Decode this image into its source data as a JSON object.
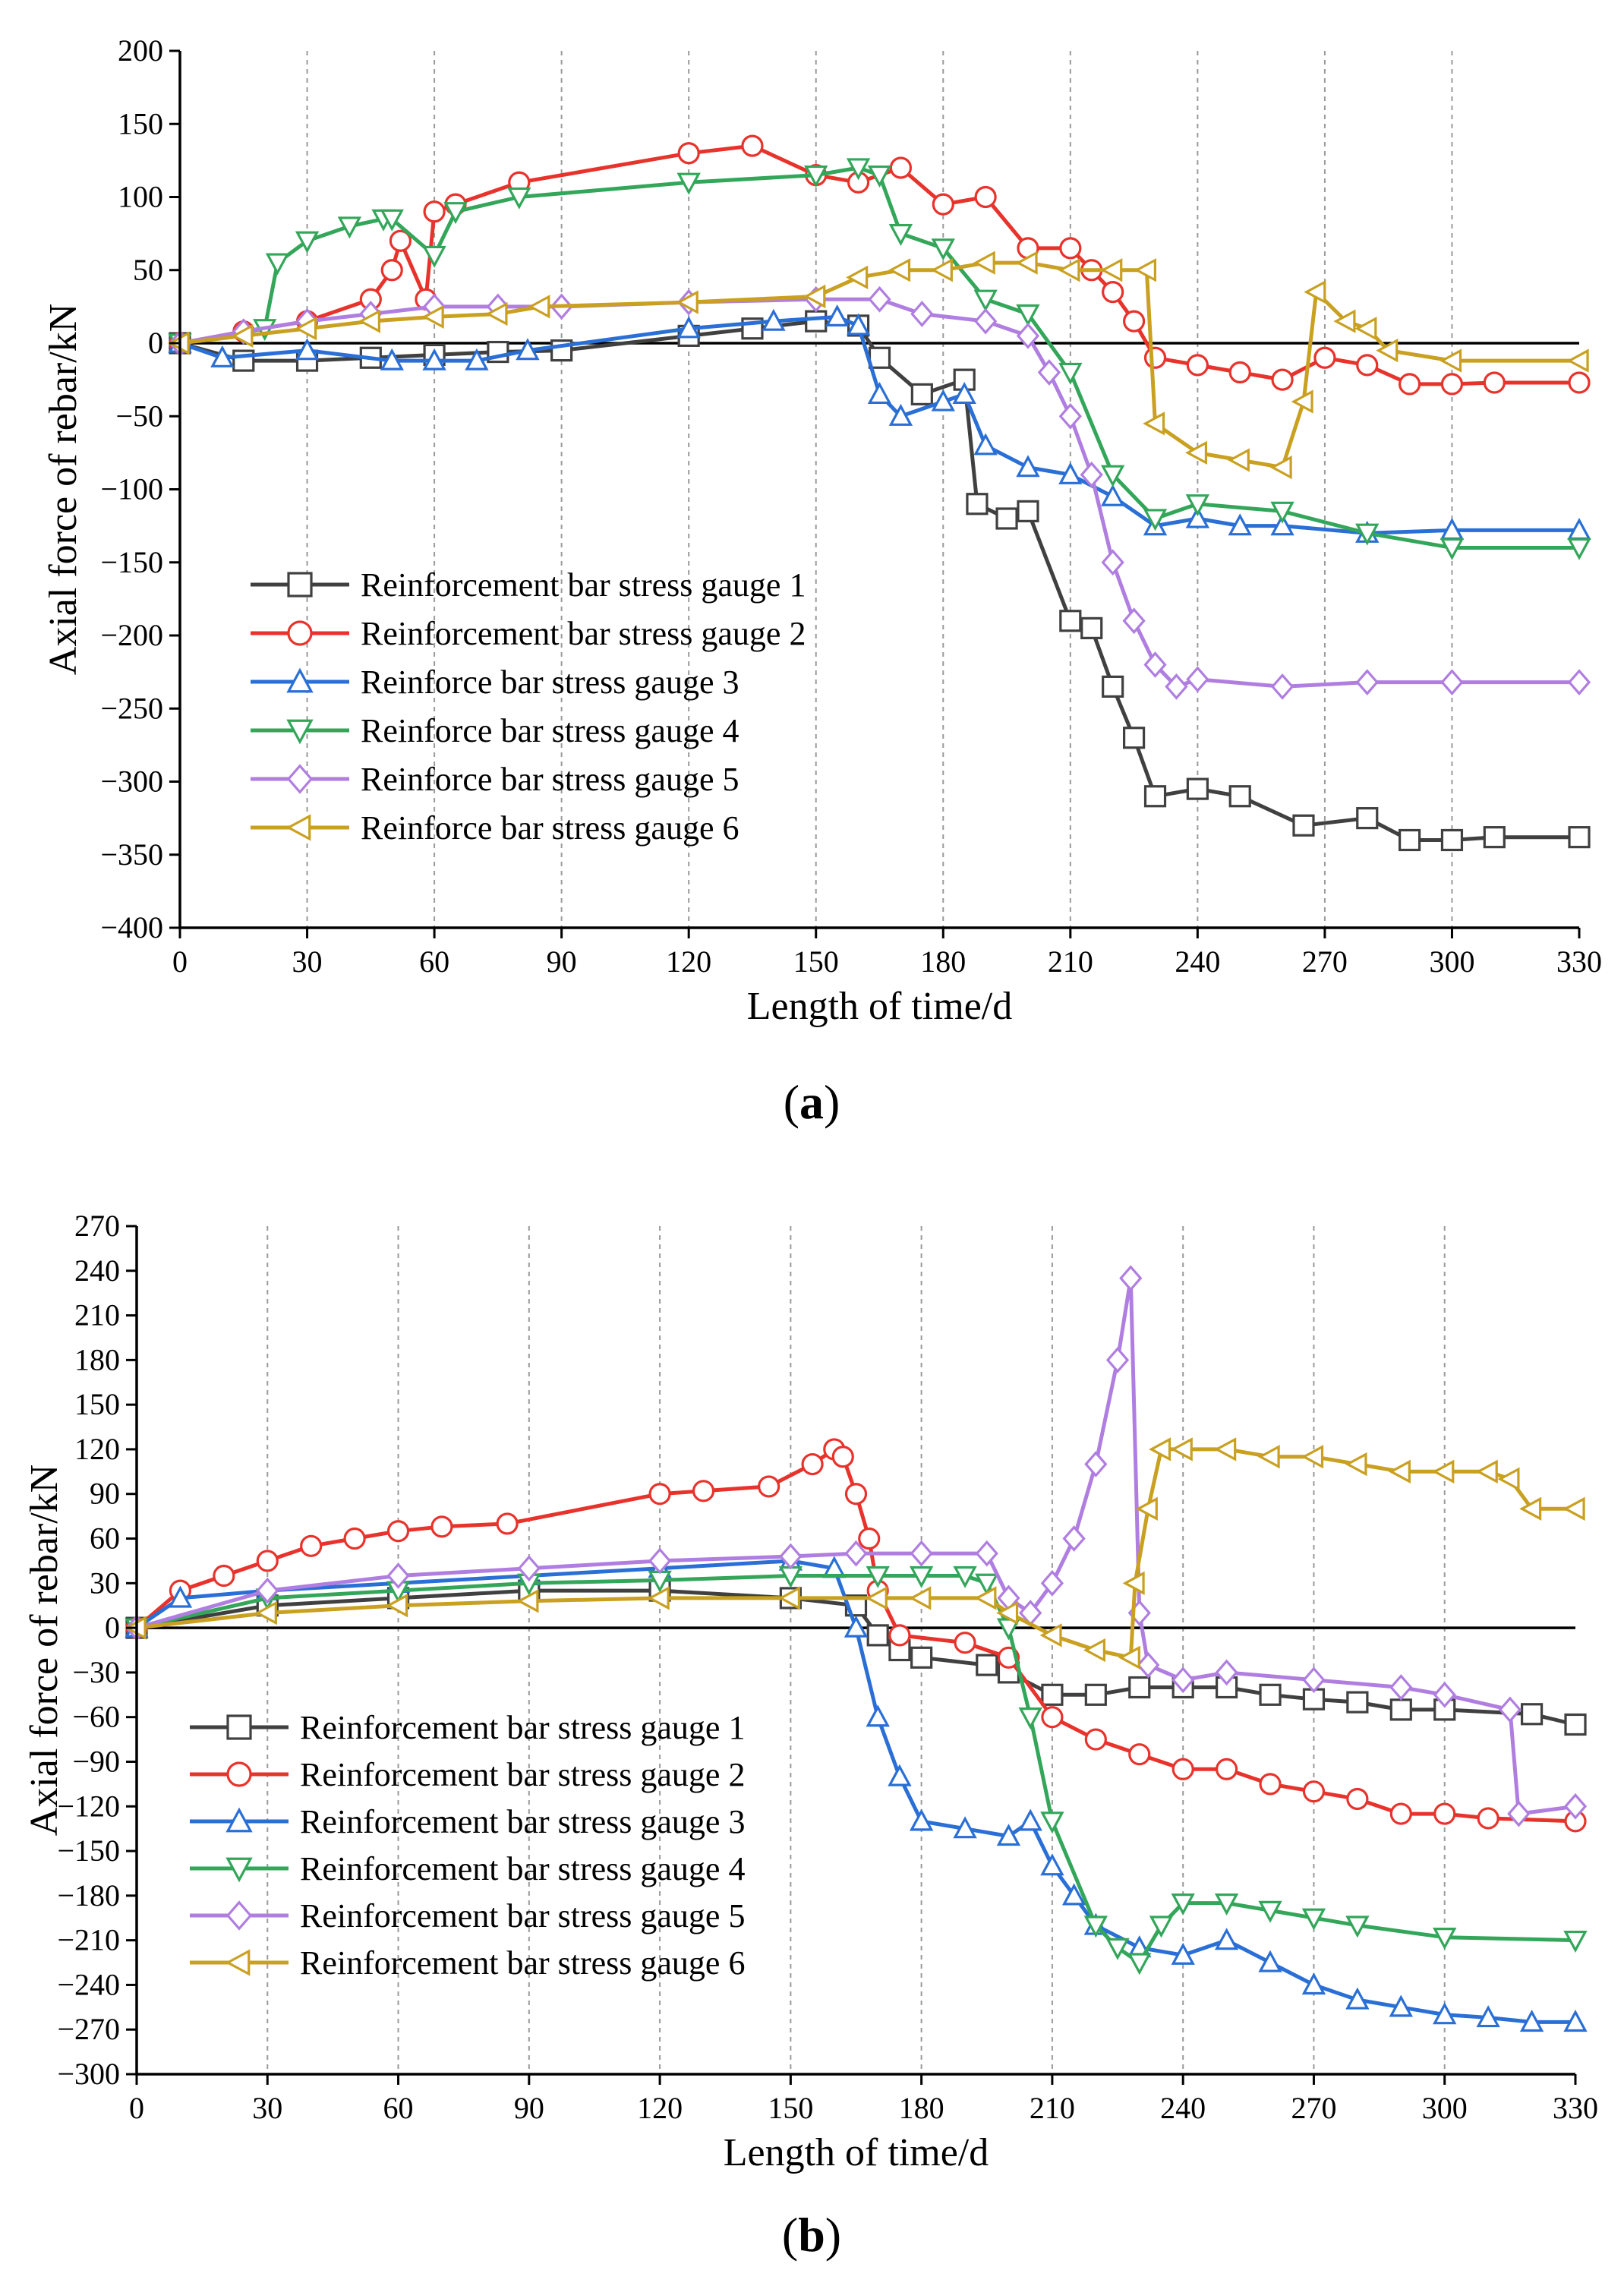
{
  "chart_data": [
    {
      "type": "line",
      "panel_label": "a",
      "xlabel": "Length of time/d",
      "ylabel": "Axial force of rebar/kN",
      "xlim": [
        0,
        330
      ],
      "ylim": [
        -400,
        200
      ],
      "xticks": [
        0,
        30,
        60,
        90,
        120,
        150,
        180,
        210,
        240,
        270,
        300,
        330
      ],
      "yticks": [
        200,
        150,
        100,
        50,
        0,
        -50,
        -100,
        -150,
        -200,
        -250,
        -300,
        -350,
        -400
      ],
      "xgrid": [
        30,
        60,
        90,
        120,
        150,
        180,
        210,
        240,
        270,
        300
      ],
      "zero_line": 0,
      "legend_position": "bottom-left",
      "series": [
        {
          "name": "Reinforcement bar stress gauge 1",
          "color": "#404040",
          "marker": "square",
          "x": [
            0,
            15,
            30,
            45,
            60,
            75,
            90,
            120,
            135,
            150,
            160,
            165,
            175,
            185,
            188,
            195,
            200,
            210,
            215,
            220,
            225,
            230,
            240,
            250,
            265,
            280,
            290,
            300,
            310,
            330
          ],
          "y": [
            0,
            -12,
            -12,
            -10,
            -8,
            -6,
            -5,
            5,
            10,
            15,
            12,
            -10,
            -35,
            -25,
            -110,
            -120,
            -115,
            -190,
            -195,
            -235,
            -270,
            -310,
            -305,
            -310,
            -330,
            -325,
            -340,
            -340,
            -338,
            -338
          ]
        },
        {
          "name": "Reinforcement bar stress gauge 2",
          "color": "#e8332c",
          "marker": "circle",
          "x": [
            0,
            15,
            30,
            45,
            50,
            52,
            58,
            60,
            65,
            80,
            120,
            135,
            150,
            160,
            170,
            180,
            190,
            200,
            210,
            215,
            220,
            225,
            230,
            240,
            250,
            260,
            270,
            280,
            290,
            300,
            310,
            330
          ],
          "y": [
            0,
            8,
            15,
            30,
            50,
            70,
            30,
            90,
            95,
            110,
            130,
            135,
            115,
            110,
            120,
            95,
            100,
            65,
            65,
            50,
            35,
            15,
            -10,
            -15,
            -20,
            -25,
            -10,
            -15,
            -28,
            -28,
            -27,
            -27
          ]
        },
        {
          "name": "Reinforce bar stress gauge 3",
          "color": "#2a6fd6",
          "marker": "triangle-up",
          "x": [
            0,
            10,
            30,
            50,
            60,
            70,
            82,
            120,
            140,
            155,
            160,
            165,
            170,
            180,
            185,
            190,
            200,
            210,
            220,
            230,
            240,
            250,
            260,
            280,
            300,
            330
          ],
          "y": [
            0,
            -10,
            -5,
            -12,
            -12,
            -12,
            -5,
            10,
            15,
            18,
            12,
            -35,
            -50,
            -40,
            -35,
            -70,
            -85,
            -90,
            -105,
            -125,
            -120,
            -125,
            -125,
            -130,
            -128,
            -128
          ]
        },
        {
          "name": "Reinforce bar stress gauge 4",
          "color": "#33a65a",
          "marker": "triangle-down",
          "x": [
            0,
            20,
            23,
            30,
            40,
            48,
            50,
            60,
            65,
            80,
            120,
            150,
            160,
            165,
            170,
            180,
            190,
            200,
            210,
            220,
            230,
            240,
            260,
            280,
            300,
            330
          ],
          "y": [
            0,
            10,
            55,
            70,
            80,
            85,
            85,
            60,
            90,
            100,
            110,
            115,
            120,
            115,
            75,
            65,
            30,
            20,
            -20,
            -90,
            -120,
            -110,
            -115,
            -130,
            -140,
            -140
          ]
        },
        {
          "name": "Reinforce bar stress gauge 5",
          "color": "#b07ee0",
          "marker": "diamond",
          "x": [
            0,
            15,
            30,
            45,
            60,
            75,
            90,
            120,
            150,
            165,
            175,
            190,
            200,
            205,
            210,
            215,
            220,
            225,
            230,
            235,
            240,
            260,
            280,
            300,
            330
          ],
          "y": [
            0,
            8,
            15,
            20,
            25,
            25,
            25,
            28,
            30,
            30,
            20,
            15,
            5,
            -20,
            -50,
            -90,
            -150,
            -190,
            -220,
            -235,
            -230,
            -235,
            -232,
            -232,
            -232
          ]
        },
        {
          "name": "Reinforce bar stress gauge 6",
          "color": "#c9a020",
          "marker": "triangle-left",
          "x": [
            0,
            15,
            30,
            45,
            60,
            75,
            85,
            120,
            150,
            160,
            170,
            180,
            190,
            200,
            210,
            220,
            228,
            230,
            240,
            250,
            260,
            265,
            268,
            275,
            280,
            285,
            300,
            330
          ],
          "y": [
            0,
            5,
            10,
            15,
            18,
            20,
            25,
            28,
            32,
            45,
            50,
            50,
            55,
            55,
            50,
            50,
            50,
            -55,
            -75,
            -80,
            -85,
            -40,
            35,
            15,
            10,
            -5,
            -12,
            -12
          ]
        }
      ]
    },
    {
      "type": "line",
      "panel_label": "b",
      "xlabel": "Length of time/d",
      "ylabel": "Axial force of rebar/kN",
      "xlim": [
        0,
        330
      ],
      "ylim": [
        -300,
        270
      ],
      "xticks": [
        0,
        30,
        60,
        90,
        120,
        150,
        180,
        210,
        240,
        270,
        300,
        330
      ],
      "yticks": [
        270,
        240,
        210,
        180,
        150,
        120,
        90,
        60,
        30,
        0,
        -30,
        -60,
        -90,
        -120,
        -150,
        -180,
        -210,
        -240,
        -270,
        -300
      ],
      "xgrid": [
        30,
        60,
        90,
        120,
        150,
        180,
        210,
        240,
        270,
        300
      ],
      "zero_line": 0,
      "legend_position": "bottom-left",
      "series": [
        {
          "name": "Reinforcement bar stress gauge 1",
          "color": "#404040",
          "marker": "square",
          "x": [
            0,
            30,
            60,
            90,
            120,
            150,
            165,
            170,
            175,
            180,
            195,
            200,
            210,
            220,
            230,
            240,
            250,
            260,
            270,
            280,
            290,
            300,
            320,
            330
          ],
          "y": [
            0,
            15,
            20,
            25,
            25,
            20,
            15,
            -5,
            -15,
            -20,
            -25,
            -30,
            -45,
            -45,
            -40,
            -40,
            -40,
            -45,
            -48,
            -50,
            -55,
            -55,
            -58,
            -65
          ]
        },
        {
          "name": "Reinforcement bar stress gauge 2",
          "color": "#e8332c",
          "marker": "circle",
          "x": [
            0,
            10,
            20,
            30,
            40,
            50,
            60,
            70,
            85,
            120,
            130,
            145,
            155,
            160,
            162,
            165,
            168,
            170,
            175,
            190,
            200,
            210,
            220,
            230,
            240,
            250,
            260,
            270,
            280,
            290,
            300,
            310,
            330
          ],
          "y": [
            0,
            25,
            35,
            45,
            55,
            60,
            65,
            68,
            70,
            90,
            92,
            95,
            110,
            120,
            115,
            90,
            60,
            25,
            -5,
            -10,
            -20,
            -60,
            -75,
            -85,
            -95,
            -95,
            -105,
            -110,
            -115,
            -125,
            -125,
            -128,
            -130
          ]
        },
        {
          "name": "Reinforcement bar stress gauge 3",
          "color": "#2a6fd6",
          "marker": "triangle-up",
          "x": [
            0,
            10,
            30,
            60,
            90,
            120,
            150,
            160,
            165,
            170,
            175,
            180,
            190,
            200,
            205,
            210,
            215,
            220,
            230,
            240,
            250,
            260,
            270,
            280,
            290,
            300,
            310,
            320,
            330
          ],
          "y": [
            0,
            20,
            25,
            30,
            35,
            40,
            45,
            40,
            0,
            -60,
            -100,
            -130,
            -135,
            -140,
            -130,
            -160,
            -180,
            -200,
            -215,
            -220,
            -210,
            -225,
            -240,
            -250,
            -255,
            -260,
            -262,
            -265,
            -265
          ]
        },
        {
          "name": "Reinforcement bar stress gauge 4",
          "color": "#33a65a",
          "marker": "triangle-down",
          "x": [
            0,
            30,
            60,
            90,
            120,
            150,
            170,
            180,
            190,
            195,
            200,
            205,
            210,
            220,
            225,
            230,
            235,
            240,
            250,
            260,
            270,
            280,
            300,
            330
          ],
          "y": [
            0,
            20,
            25,
            30,
            32,
            35,
            35,
            35,
            35,
            30,
            0,
            -60,
            -130,
            -200,
            -215,
            -225,
            -200,
            -185,
            -185,
            -190,
            -195,
            -200,
            -208,
            -210
          ]
        },
        {
          "name": "Reinforcement bar stress gauge 5",
          "color": "#b07ee0",
          "marker": "diamond",
          "x": [
            0,
            30,
            60,
            90,
            120,
            150,
            165,
            180,
            195,
            200,
            205,
            210,
            215,
            220,
            225,
            228,
            230,
            232,
            240,
            250,
            270,
            290,
            300,
            315,
            317,
            330
          ],
          "y": [
            0,
            25,
            35,
            40,
            45,
            48,
            50,
            50,
            50,
            20,
            10,
            30,
            60,
            110,
            180,
            235,
            10,
            -25,
            -35,
            -30,
            -35,
            -40,
            -45,
            -55,
            -125,
            -120
          ]
        },
        {
          "name": "Reinforcement bar stress gauge 6",
          "color": "#c9a020",
          "marker": "triangle-left",
          "x": [
            0,
            30,
            60,
            90,
            120,
            150,
            170,
            180,
            195,
            200,
            210,
            220,
            228,
            229,
            232,
            235,
            240,
            250,
            260,
            270,
            280,
            290,
            300,
            310,
            315,
            320,
            330
          ],
          "y": [
            0,
            10,
            15,
            18,
            20,
            20,
            20,
            20,
            20,
            10,
            -5,
            -15,
            -20,
            30,
            80,
            120,
            120,
            120,
            115,
            115,
            110,
            105,
            105,
            105,
            100,
            80,
            80
          ]
        }
      ]
    }
  ]
}
